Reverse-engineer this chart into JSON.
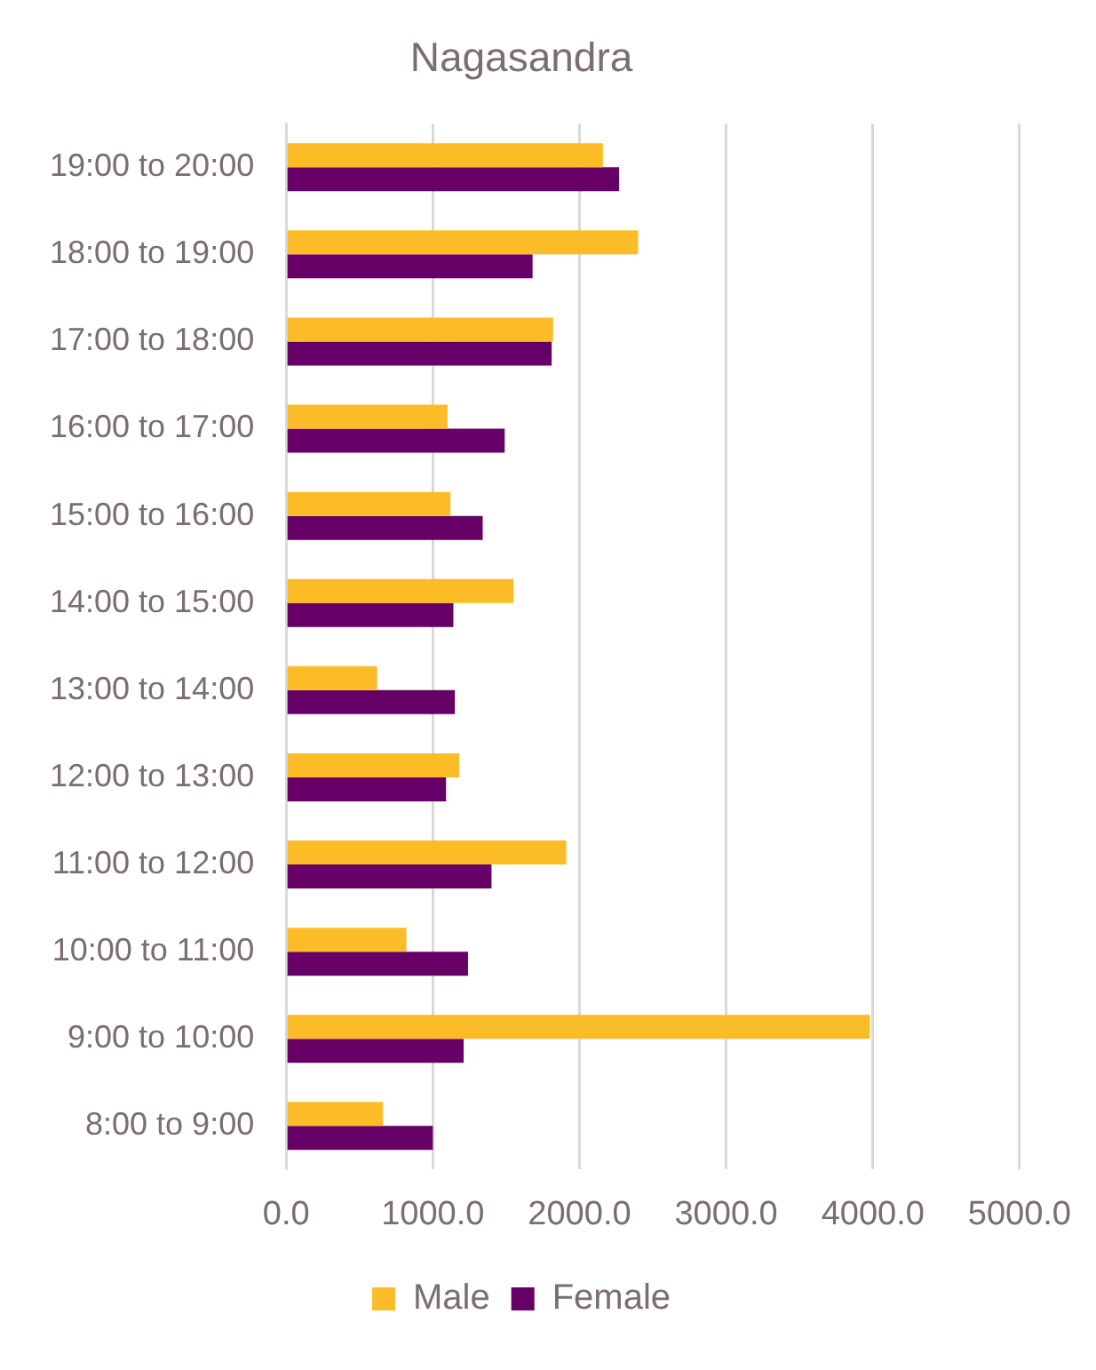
{
  "chart_data": {
    "type": "bar",
    "orientation": "horizontal",
    "title": "Nagasandra",
    "categories": [
      "19:00 to 20:00",
      "18:00 to 19:00",
      "17:00 to 18:00",
      "16:00 to 17:00",
      "15:00 to 16:00",
      "14:00 to 15:00",
      "13:00 to 14:00",
      "12:00 to 13:00",
      "11:00 to 12:00",
      "10:00 to 11:00",
      "9:00 to 10:00",
      "8:00 to 9:00"
    ],
    "series": [
      {
        "name": "Male",
        "color": "#fbbc28",
        "values": [
          2160,
          2400,
          1820,
          1100,
          1120,
          1550,
          620,
          1180,
          1910,
          820,
          3980,
          660
        ]
      },
      {
        "name": "Female",
        "color": "#660066",
        "values": [
          2270,
          1680,
          1810,
          1490,
          1340,
          1140,
          1150,
          1090,
          1400,
          1240,
          1210,
          1000
        ]
      }
    ],
    "xlim": [
      0,
      5000
    ],
    "xticks": [
      {
        "value": 0,
        "label": "0.0"
      },
      {
        "value": 1000,
        "label": "1000.0"
      },
      {
        "value": 2000,
        "label": "2000.0"
      },
      {
        "value": 3000,
        "label": "3000.0"
      },
      {
        "value": 4000,
        "label": "4000.0"
      },
      {
        "value": 5000,
        "label": "5000.0"
      }
    ],
    "grid": "x",
    "legend": "bottom"
  }
}
